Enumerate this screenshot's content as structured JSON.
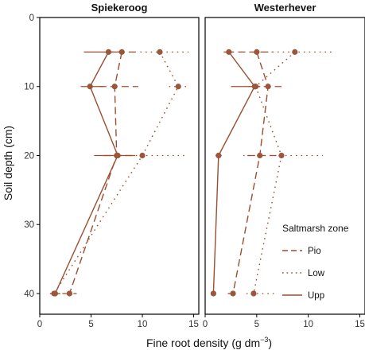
{
  "chart_data": {
    "type": "line",
    "xlabel": "Fine root density (g dm",
    "xlabel_sup": "−3",
    "xlabel_end": ")",
    "ylabel": "Soil depth (cm)",
    "xlim": [
      0,
      15.5
    ],
    "ylim": [
      0,
      43
    ],
    "y_inverted": true,
    "xticks": [
      0,
      5,
      10,
      15
    ],
    "yticks": [
      0,
      10,
      20,
      30,
      40
    ],
    "colors": {
      "line": "#9a4e2e",
      "point": "#9b563c",
      "frame": "#000000"
    },
    "legend": {
      "title": "Saltmarsh zone",
      "placement": "inside right of second panel",
      "entries": [
        {
          "label": "Pio",
          "dash": "dashed"
        },
        {
          "label": "Low",
          "dash": "dotted"
        },
        {
          "label": "Upp",
          "dash": "solid"
        }
      ]
    },
    "panels": [
      {
        "title": "Spiekeroog",
        "series": [
          {
            "name": "Pio",
            "dash": "dashed",
            "points": [
              {
                "x": 8.0,
                "y": 5,
                "err": [
                  6.5,
                  9.6
                ]
              },
              {
                "x": 7.3,
                "y": 10,
                "err": [
                  5.8,
                  9.6
                ]
              },
              {
                "x": 7.5,
                "y": 20,
                "err": [
                  6.2,
                  8.9
                ]
              },
              {
                "x": 2.9,
                "y": 40,
                "err": [
                  2.2,
                  3.6
                ]
              }
            ]
          },
          {
            "name": "Low",
            "dash": "dotted",
            "points": [
              {
                "x": 11.7,
                "y": 5,
                "err": [
                  9.8,
                  14.5
                ]
              },
              {
                "x": 13.5,
                "y": 10,
                "err": [
                  12.6,
                  14.6
                ]
              },
              {
                "x": 10.0,
                "y": 20,
                "err": [
                  6.8,
                  14.4
                ]
              },
              {
                "x": 1.4,
                "y": 40,
                "err": [
                  1.0,
                  1.9
                ]
              }
            ]
          },
          {
            "name": "Upp",
            "dash": "solid",
            "points": [
              {
                "x": 6.7,
                "y": 5,
                "err": [
                  4.3,
                  8.2
                ]
              },
              {
                "x": 4.9,
                "y": 10,
                "err": [
                  4.0,
                  6.2
                ]
              },
              {
                "x": 7.6,
                "y": 20,
                "err": [
                  5.3,
                  9.3
                ]
              },
              {
                "x": 1.5,
                "y": 40,
                "err": [
                  1.0,
                  2.0
                ]
              }
            ]
          }
        ]
      },
      {
        "title": "Westerhever",
        "series": [
          {
            "name": "Pio",
            "dash": "dashed",
            "points": [
              {
                "x": 5.0,
                "y": 5,
                "err": [
                  3.2,
                  6.5
                ]
              },
              {
                "x": 6.1,
                "y": 10,
                "err": [
                  4.6,
                  7.4
                ]
              },
              {
                "x": 5.3,
                "y": 20,
                "err": [
                  4.1,
                  6.9
                ]
              },
              {
                "x": 2.7,
                "y": 40,
                "err": [
                  2.2,
                  3.2
                ]
              }
            ]
          },
          {
            "name": "Low",
            "dash": "dotted",
            "points": [
              {
                "x": 8.7,
                "y": 5,
                "err": [
                  6.0,
                  12.3
                ]
              },
              {
                "x": 4.9,
                "y": 10,
                "err": [
                  4.2,
                  5.6
                ]
              },
              {
                "x": 7.4,
                "y": 20,
                "err": [
                  3.7,
                  11.4
                ]
              },
              {
                "x": 4.7,
                "y": 40,
                "err": [
                  4.0,
                  6.8
                ]
              }
            ]
          },
          {
            "name": "Upp",
            "dash": "solid",
            "points": [
              {
                "x": 2.3,
                "y": 5,
                "err": [
                  1.8,
                  2.8
                ]
              },
              {
                "x": 4.8,
                "y": 10,
                "err": [
                  2.5,
                  5.2
                ]
              },
              {
                "x": 1.3,
                "y": 20,
                "err": [
                  1.0,
                  1.6
                ]
              },
              {
                "x": 0.8,
                "y": 40,
                "err": [
                  0.6,
                  1.0
                ]
              }
            ]
          }
        ]
      }
    ]
  }
}
